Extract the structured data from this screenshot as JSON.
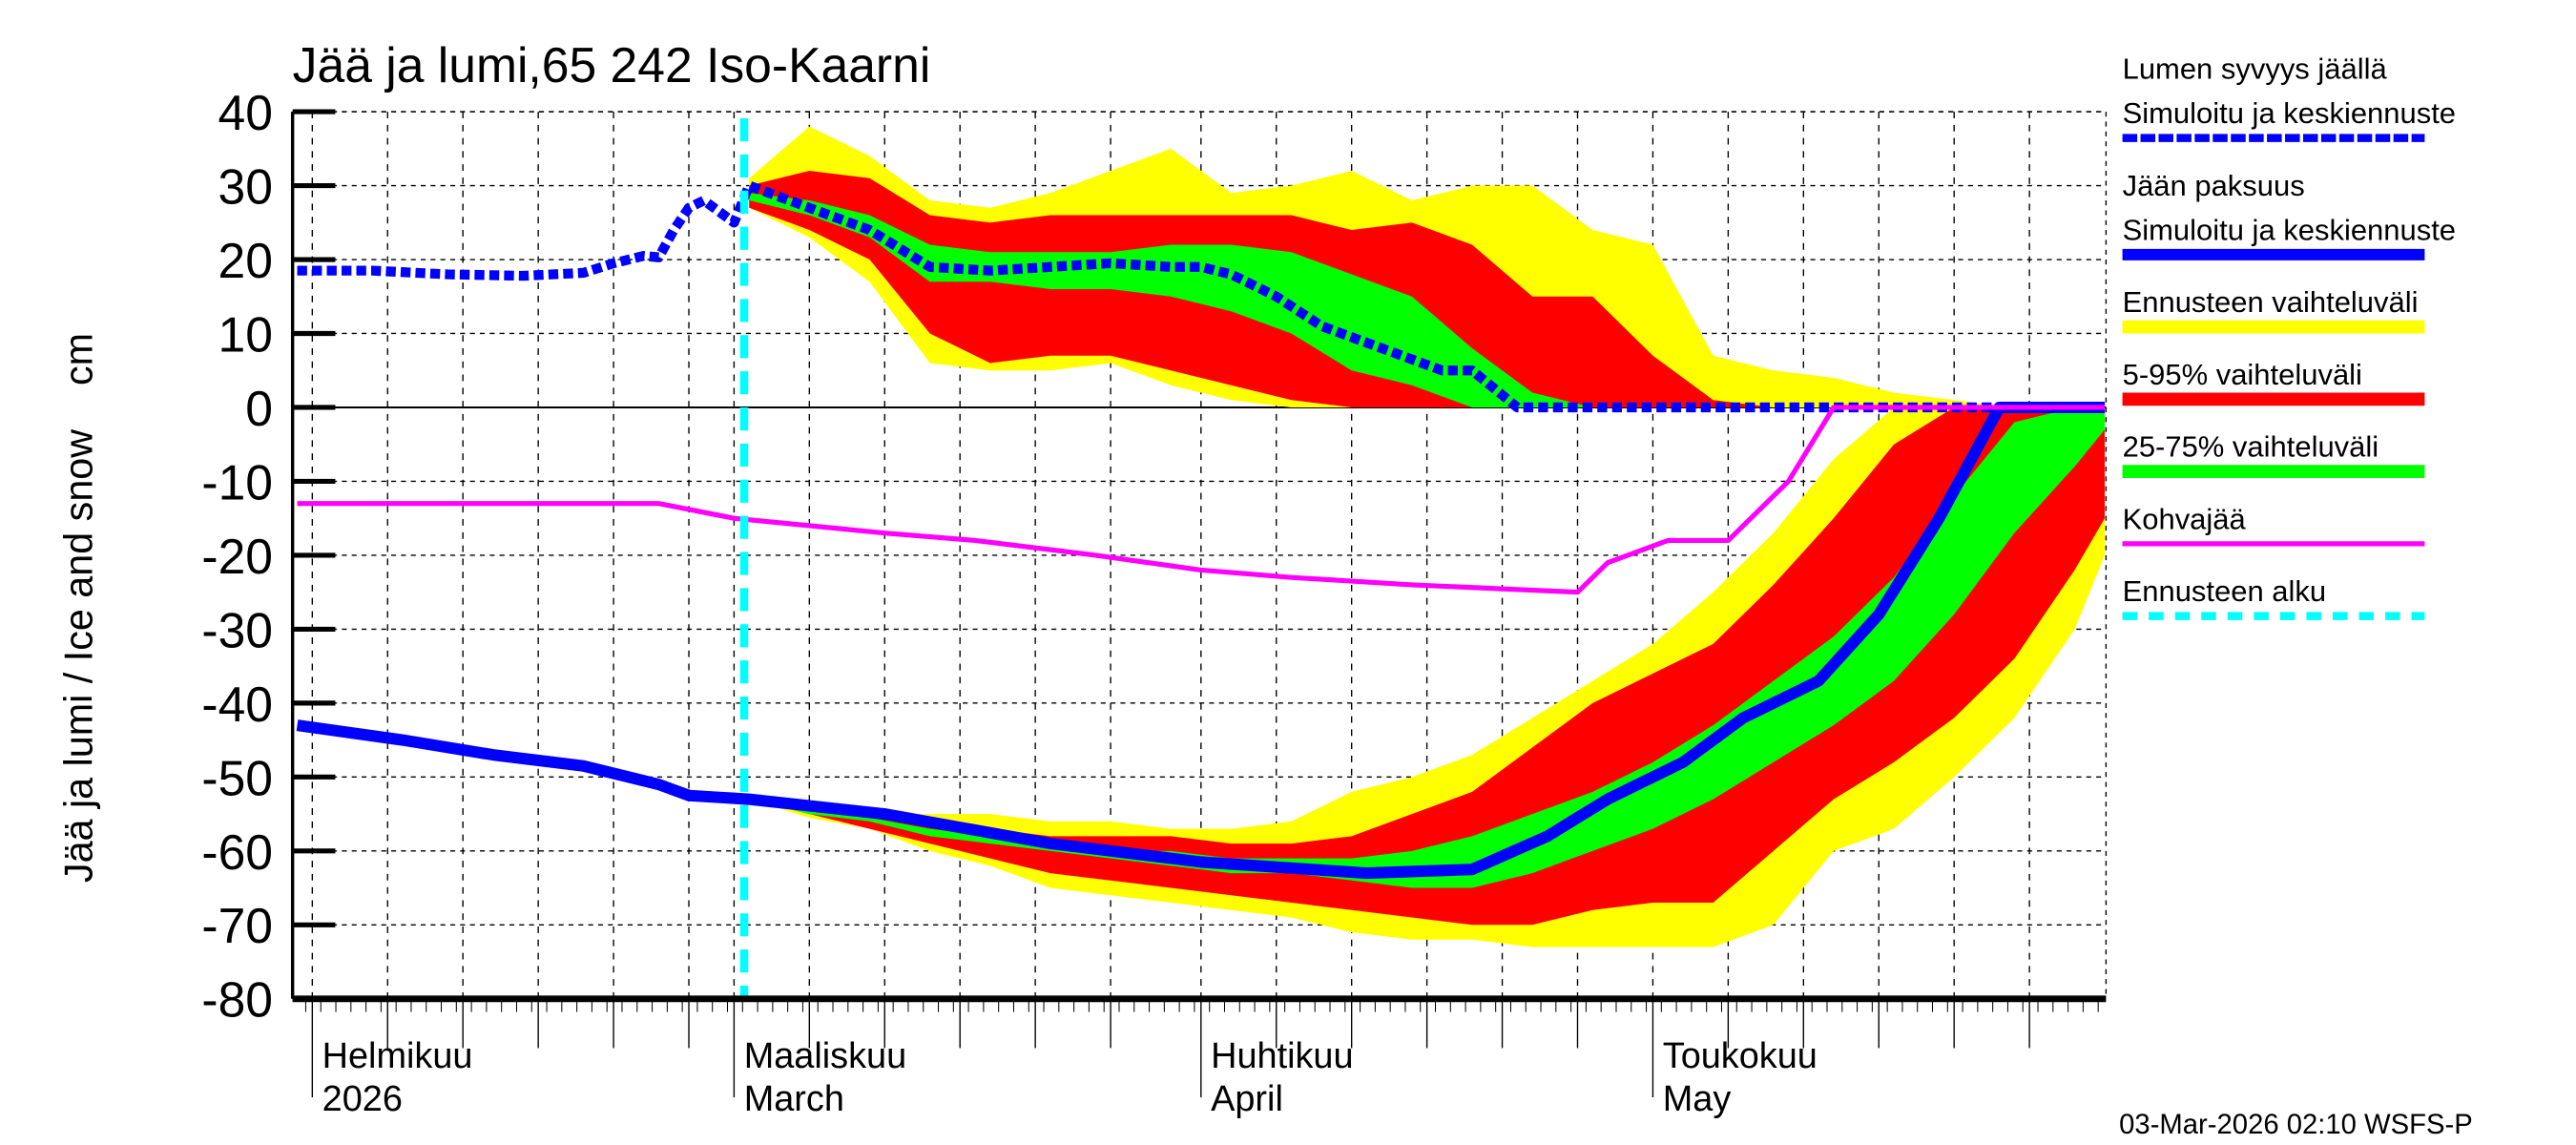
{
  "chart_data": {
    "type": "area",
    "title": "Jää ja lumi,65 242 Iso-Kaarni",
    "ylabel": "Jää ja lumi / Ice and snow    cm",
    "ylim": [
      -80,
      40
    ],
    "yticks": [
      40,
      30,
      20,
      10,
      0,
      -10,
      -20,
      -30,
      -40,
      -50,
      -60,
      -70,
      -80
    ],
    "xlim": [
      "2026-01-31",
      "2026-05-31"
    ],
    "grid": true,
    "month_labels": [
      {
        "date": "2026-02-01",
        "fi": "Helmikuu",
        "en": "2026"
      },
      {
        "date": "2026-03-01",
        "fi": "Maaliskuu",
        "en": "March"
      },
      {
        "date": "2026-04-01",
        "fi": "Huhtikuu",
        "en": "April"
      },
      {
        "date": "2026-05-01",
        "fi": "Toukokuu",
        "en": "May"
      }
    ],
    "forecast_start": "2026-03-02",
    "legend_placement": "right",
    "legend": [
      {
        "label1": "Lumen syvyys jäällä",
        "label2": "Simuloitu ja keskiennuste",
        "color": "#0000ff",
        "style": "dotted"
      },
      {
        "label1": "Jään paksuus",
        "label2": "Simuloitu ja keskiennuste",
        "color": "#0000ff",
        "style": "solid"
      },
      {
        "label1": "Ennusteen vaihteluväli",
        "color": "#ffff00",
        "style": "band"
      },
      {
        "label1": "5-95% vaihteluväli",
        "color": "#ff0000",
        "style": "band"
      },
      {
        "label1": "25-75% vaihteluväli",
        "color": "#00ff00",
        "style": "band"
      },
      {
        "label1": "Kohvajää",
        "color": "#ff00ff",
        "style": "solid"
      },
      {
        "label1": "Ennusteen alku",
        "color": "#00ffff",
        "style": "dashed"
      }
    ],
    "band_dates": [
      "2026-03-02",
      "2026-03-06",
      "2026-03-10",
      "2026-03-14",
      "2026-03-18",
      "2026-03-22",
      "2026-03-26",
      "2026-03-30",
      "2026-04-03",
      "2026-04-07",
      "2026-04-11",
      "2026-04-15",
      "2026-04-19",
      "2026-04-23",
      "2026-04-27",
      "2026-05-01",
      "2026-05-05",
      "2026-05-09",
      "2026-05-13",
      "2026-05-17",
      "2026-05-21",
      "2026-05-25",
      "2026-05-29",
      "2026-05-31"
    ],
    "snow_bands": {
      "max": [
        31,
        38,
        34,
        28,
        27,
        29,
        32,
        35,
        29,
        30,
        32,
        28,
        30,
        30,
        24,
        22,
        7,
        5,
        4,
        2,
        1,
        0,
        0,
        0
      ],
      "p95": [
        30,
        32,
        31,
        26,
        25,
        26,
        26,
        26,
        26,
        26,
        24,
        25,
        22,
        15,
        15,
        7,
        1,
        0,
        0,
        0,
        0,
        0,
        0,
        0
      ],
      "p75": [
        29,
        28,
        26,
        22,
        21,
        21,
        21,
        22,
        22,
        21,
        18,
        15,
        8,
        2,
        0,
        0,
        0,
        0,
        0,
        0,
        0,
        0,
        0,
        0
      ],
      "p25": [
        28,
        26,
        23,
        17,
        17,
        16,
        16,
        15,
        13,
        10,
        5,
        3,
        0,
        0,
        0,
        0,
        0,
        0,
        0,
        0,
        0,
        0,
        0,
        0
      ],
      "p5": [
        27,
        24,
        20,
        10,
        6,
        7,
        7,
        5,
        3,
        1,
        0,
        0,
        0,
        0,
        0,
        0,
        0,
        0,
        0,
        0,
        0,
        0,
        0,
        0
      ],
      "min": [
        27,
        23,
        17,
        6,
        5,
        5,
        6,
        3,
        1,
        0,
        0,
        0,
        0,
        0,
        0,
        0,
        0,
        0,
        0,
        0,
        0,
        0,
        0,
        0
      ]
    },
    "ice_bands": {
      "max": [
        -53,
        -54,
        -55,
        -55,
        -55,
        -56,
        -56,
        -57,
        -57,
        -56,
        -52,
        -50,
        -47,
        -42,
        -37,
        -32,
        -25,
        -17,
        -7,
        0,
        0,
        0,
        0,
        0
      ],
      "p95": [
        -53,
        -54,
        -55,
        -56,
        -57,
        -58,
        -58,
        -58,
        -59,
        -59,
        -58,
        -55,
        -52,
        -46,
        -40,
        -36,
        -32,
        -24,
        -15,
        -5,
        0,
        0,
        0,
        0
      ],
      "p75": [
        -53,
        -54.5,
        -55.5,
        -57,
        -58,
        -59,
        -60,
        -60,
        -61,
        -61,
        -61,
        -60,
        -58,
        -55,
        -52,
        -48,
        -43,
        -37,
        -31,
        -23,
        -12,
        -2,
        0,
        0
      ],
      "p25": [
        -53,
        -55,
        -56,
        -58,
        -59,
        -60,
        -61,
        -62,
        -63,
        -63,
        -64,
        -65,
        -65,
        -63,
        -60,
        -57,
        -53,
        -48,
        -43,
        -37,
        -28,
        -17,
        -8,
        -3
      ],
      "p5": [
        -53,
        -55,
        -57,
        -59,
        -61,
        -63,
        -64,
        -65,
        -66,
        -67,
        -68,
        -69,
        -70,
        -70,
        -68,
        -67,
        -67,
        -60,
        -53,
        -48,
        -42,
        -34,
        -22,
        -15
      ],
      "min": [
        -53,
        -55.5,
        -57,
        -60,
        -62,
        -65,
        -66,
        -67,
        -68,
        -69,
        -71,
        -72,
        -72,
        -73,
        -73,
        -73,
        -73,
        -70,
        -60,
        -57,
        -50,
        -42,
        -30,
        -20
      ]
    },
    "series": [
      {
        "name": "Lumen syvyys jäällä",
        "color": "#0000ff",
        "style": "dotted",
        "points": [
          [
            "2026-01-31",
            18.5
          ],
          [
            "2026-02-05",
            18.5
          ],
          [
            "2026-02-10",
            18
          ],
          [
            "2026-02-15",
            17.8
          ],
          [
            "2026-02-19",
            18.2
          ],
          [
            "2026-02-21",
            19.5
          ],
          [
            "2026-02-23",
            20.5
          ],
          [
            "2026-02-24",
            20.3
          ],
          [
            "2026-02-25",
            24
          ],
          [
            "2026-02-26",
            27
          ],
          [
            "2026-02-27",
            28
          ],
          [
            "2026-03-01",
            25
          ],
          [
            "2026-03-02",
            30
          ],
          [
            "2026-03-06",
            27
          ],
          [
            "2026-03-10",
            24
          ],
          [
            "2026-03-14",
            19
          ],
          [
            "2026-03-18",
            18.5
          ],
          [
            "2026-03-22",
            19
          ],
          [
            "2026-03-26",
            19.5
          ],
          [
            "2026-03-30",
            19
          ],
          [
            "2026-04-01",
            19
          ],
          [
            "2026-04-03",
            18
          ],
          [
            "2026-04-06",
            15
          ],
          [
            "2026-04-09",
            11
          ],
          [
            "2026-04-13",
            8
          ],
          [
            "2026-04-17",
            5
          ],
          [
            "2026-04-19",
            5
          ],
          [
            "2026-04-22",
            0
          ],
          [
            "2026-05-31",
            0
          ]
        ]
      },
      {
        "name": "Jään paksuus",
        "color": "#0000ff",
        "style": "solid",
        "points": [
          [
            "2026-01-31",
            -43
          ],
          [
            "2026-02-07",
            -45
          ],
          [
            "2026-02-13",
            -47
          ],
          [
            "2026-02-19",
            -48.5
          ],
          [
            "2026-02-24",
            -51
          ],
          [
            "2026-02-26",
            -52.5
          ],
          [
            "2026-03-02",
            -53
          ],
          [
            "2026-03-11",
            -55
          ],
          [
            "2026-03-22",
            -59
          ],
          [
            "2026-04-01",
            -61.5
          ],
          [
            "2026-04-12",
            -63
          ],
          [
            "2026-04-19",
            -62.5
          ],
          [
            "2026-04-24",
            -58
          ],
          [
            "2026-04-28",
            -53
          ],
          [
            "2026-05-03",
            -48
          ],
          [
            "2026-05-07",
            -42
          ],
          [
            "2026-05-12",
            -37
          ],
          [
            "2026-05-16",
            -28
          ],
          [
            "2026-05-20",
            -15
          ],
          [
            "2026-05-24",
            0
          ],
          [
            "2026-05-31",
            0
          ]
        ]
      },
      {
        "name": "Kohvajää",
        "color": "#ff00ff",
        "style": "solid",
        "points": [
          [
            "2026-01-31",
            -13
          ],
          [
            "2026-02-24",
            -13
          ],
          [
            "2026-03-01",
            -15
          ],
          [
            "2026-03-11",
            -17
          ],
          [
            "2026-03-17",
            -18
          ],
          [
            "2026-03-25",
            -20
          ],
          [
            "2026-04-01",
            -22
          ],
          [
            "2026-04-07",
            -23
          ],
          [
            "2026-04-15",
            -24
          ],
          [
            "2026-04-26",
            -25
          ],
          [
            "2026-04-28",
            -21
          ],
          [
            "2026-05-02",
            -18
          ],
          [
            "2026-05-06",
            -18
          ],
          [
            "2026-05-10",
            -10
          ],
          [
            "2026-05-13",
            0
          ],
          [
            "2026-05-31",
            0
          ]
        ]
      }
    ],
    "colors": {
      "yellow": "#ffff00",
      "red": "#ff0000",
      "green": "#00ff00",
      "blue": "#0000ff",
      "magenta": "#ff00ff",
      "cyan": "#00ffff"
    }
  },
  "footer": {
    "timestamp": "03-Mar-2026 02:10 WSFS-P"
  }
}
